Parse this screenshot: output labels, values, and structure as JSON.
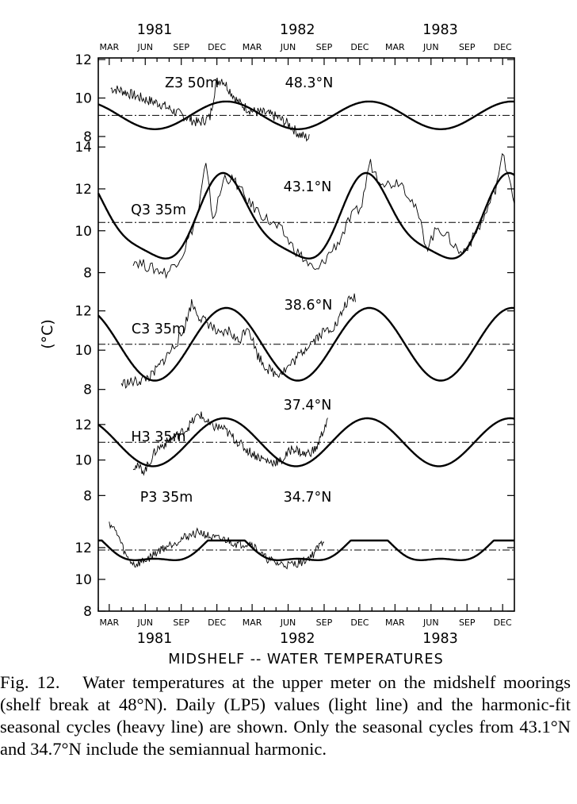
{
  "chart_data": {
    "type": "line",
    "title": "MIDSHELF -- WATER TEMPERATURES",
    "ylabel": "(°C)",
    "xlim": [
      "1981-02-01",
      "1983-12-31"
    ],
    "month_labels": [
      "MAR",
      "JUN",
      "SEP",
      "DEC"
    ],
    "month_ticks": [
      {
        "label": "MAR",
        "date": "1981-03-01"
      },
      {
        "label": "JUN",
        "date": "1981-06-01"
      },
      {
        "label": "SEP",
        "date": "1981-09-01"
      },
      {
        "label": "DEC",
        "date": "1981-12-01"
      },
      {
        "label": "MAR",
        "date": "1982-03-01"
      },
      {
        "label": "JUN",
        "date": "1982-06-01"
      },
      {
        "label": "SEP",
        "date": "1982-09-01"
      },
      {
        "label": "DEC",
        "date": "1982-12-01"
      },
      {
        "label": "MAR",
        "date": "1983-03-01"
      },
      {
        "label": "JUN",
        "date": "1983-06-01"
      },
      {
        "label": "SEP",
        "date": "1983-09-01"
      },
      {
        "label": "DEC",
        "date": "1983-12-01"
      }
    ],
    "year_labels": [
      {
        "label": "1981",
        "date": "1981-07-15"
      },
      {
        "label": "1982",
        "date": "1982-07-15"
      },
      {
        "label": "1983",
        "date": "1983-07-15"
      }
    ],
    "panels": [
      {
        "name": "Z3 50m",
        "latitude": "48.3°N",
        "yticks": [
          8,
          10,
          12
        ],
        "ylim": [
          8,
          12
        ],
        "mean": 9.1,
        "harmonic": {
          "mean": 9.1,
          "amp1": 0.72,
          "peak": "1981-12-25",
          "amp2": 0,
          "phase2": 0,
          "flat_top": null,
          "flat_bottom": null
        },
        "daily": {
          "start": "1981-03-05",
          "end": "1982-07-25",
          "points": [
            [
              0,
              10.5
            ],
            [
              0.05,
              10.4
            ],
            [
              0.1,
              10.2
            ],
            [
              0.18,
              9.9
            ],
            [
              0.25,
              9.7
            ],
            [
              0.32,
              9.3
            ],
            [
              0.38,
              9.0
            ],
            [
              0.44,
              8.7
            ],
            [
              0.5,
              9.0
            ],
            [
              0.53,
              10.8
            ],
            [
              0.56,
              11.0
            ],
            [
              0.6,
              10.4
            ],
            [
              0.64,
              9.8
            ],
            [
              0.68,
              9.5
            ],
            [
              0.72,
              9.3
            ],
            [
              0.78,
              9.2
            ],
            [
              0.84,
              9.0
            ],
            [
              0.9,
              8.6
            ],
            [
              0.95,
              8.1
            ],
            [
              1.0,
              7.9
            ]
          ]
        }
      },
      {
        "name": "Q3 35m",
        "latitude": "43.1°N",
        "yticks": [
          8,
          10,
          12,
          14
        ],
        "ylim": [
          7.3,
          14.5
        ],
        "mean": 10.4,
        "harmonic": {
          "mean": 10.4,
          "amp1": 1.95,
          "peak": "1981-12-25",
          "amp2": 0.45,
          "phase2": 0.6,
          "flat_top": null,
          "flat_bottom": null
        },
        "daily": {
          "start": "1981-05-01",
          "end": "1983-12-31",
          "points": [
            [
              0,
              8.6
            ],
            [
              0.05,
              8.2
            ],
            [
              0.09,
              8.0
            ],
            [
              0.13,
              8.9
            ],
            [
              0.17,
              10.8
            ],
            [
              0.19,
              13.2
            ],
            [
              0.21,
              10.5
            ],
            [
              0.24,
              12.6
            ],
            [
              0.27,
              12.3
            ],
            [
              0.3,
              11.4
            ],
            [
              0.33,
              10.9
            ],
            [
              0.36,
              10.4
            ],
            [
              0.39,
              10.0
            ],
            [
              0.42,
              9.2
            ],
            [
              0.45,
              8.6
            ],
            [
              0.48,
              8.0
            ],
            [
              0.51,
              8.8
            ],
            [
              0.54,
              9.5
            ],
            [
              0.57,
              10.6
            ],
            [
              0.6,
              11.2
            ],
            [
              0.62,
              13.3
            ],
            [
              0.64,
              12.6
            ],
            [
              0.67,
              12.2
            ],
            [
              0.7,
              12.4
            ],
            [
              0.73,
              11.5
            ],
            [
              0.75,
              10.6
            ],
            [
              0.77,
              9.2
            ],
            [
              0.8,
              10.2
            ],
            [
              0.83,
              9.6
            ],
            [
              0.86,
              8.9
            ],
            [
              0.89,
              9.6
            ],
            [
              0.92,
              10.6
            ],
            [
              0.95,
              12.0
            ],
            [
              0.97,
              13.6
            ],
            [
              0.99,
              12.4
            ],
            [
              1.0,
              11.3
            ]
          ]
        }
      },
      {
        "name": "C3 35m",
        "latitude": "38.6°N",
        "yticks": [
          8,
          10,
          12
        ],
        "ylim": [
          7.3,
          13.2
        ],
        "mean": 10.3,
        "harmonic": {
          "mean": 10.3,
          "amp1": 1.85,
          "peak": "1981-12-25",
          "amp2": 0,
          "phase2": 0,
          "flat_top": null,
          "flat_bottom": null
        },
        "daily": {
          "start": "1981-04-01",
          "end": "1982-11-20",
          "points": [
            [
              0,
              8.3
            ],
            [
              0.07,
              8.4
            ],
            [
              0.13,
              8.7
            ],
            [
              0.2,
              9.8
            ],
            [
              0.26,
              10.8
            ],
            [
              0.3,
              12.4
            ],
            [
              0.34,
              11.6
            ],
            [
              0.38,
              11.3
            ],
            [
              0.42,
              10.7
            ],
            [
              0.46,
              11.0
            ],
            [
              0.5,
              10.4
            ],
            [
              0.54,
              11.3
            ],
            [
              0.58,
              9.8
            ],
            [
              0.62,
              9.1
            ],
            [
              0.66,
              8.8
            ],
            [
              0.7,
              9.0
            ],
            [
              0.75,
              9.6
            ],
            [
              0.8,
              10.3
            ],
            [
              0.86,
              10.9
            ],
            [
              0.92,
              11.3
            ],
            [
              0.96,
              12.4
            ],
            [
              1.0,
              12.7
            ]
          ]
        }
      },
      {
        "name": "H3 35m",
        "latitude": "37.4°N",
        "yticks": [
          8,
          10,
          12
        ],
        "ylim": [
          7.3,
          13.2
        ],
        "mean": 11.0,
        "harmonic": {
          "mean": 11.0,
          "amp1": 1.35,
          "peak": "1981-12-20",
          "amp2": 0,
          "phase2": 0,
          "flat_top": null,
          "flat_bottom": null
        },
        "daily": {
          "start": "1981-05-01",
          "end": "1982-09-10",
          "points": [
            [
              0,
              9.7
            ],
            [
              0.06,
              9.4
            ],
            [
              0.12,
              10.6
            ],
            [
              0.2,
              11.2
            ],
            [
              0.27,
              11.7
            ],
            [
              0.34,
              12.6
            ],
            [
              0.4,
              11.9
            ],
            [
              0.46,
              11.8
            ],
            [
              0.52,
              11.2
            ],
            [
              0.58,
              10.6
            ],
            [
              0.64,
              10.2
            ],
            [
              0.7,
              9.9
            ],
            [
              0.76,
              9.9
            ],
            [
              0.82,
              10.7
            ],
            [
              0.88,
              10.3
            ],
            [
              0.94,
              10.6
            ],
            [
              1.0,
              12.3
            ]
          ]
        }
      },
      {
        "name": "P3 35m",
        "latitude": "34.7°N",
        "yticks": [
          8,
          10,
          12
        ],
        "ylim": [
          8,
          14.5
        ],
        "mean": 11.85,
        "harmonic": {
          "mean": 11.85,
          "amp1": 0.9,
          "peak": "1981-12-25",
          "amp2": 0.35,
          "phase2": 0.0,
          "flat_top": 12.45,
          "flat_bottom": null
        },
        "daily": {
          "start": "1981-03-01",
          "end": "1982-09-01",
          "points": [
            [
              0,
              13.6
            ],
            [
              0.04,
              12.8
            ],
            [
              0.08,
              11.4
            ],
            [
              0.12,
              10.9
            ],
            [
              0.18,
              11.3
            ],
            [
              0.24,
              11.9
            ],
            [
              0.3,
              12.3
            ],
            [
              0.36,
              12.7
            ],
            [
              0.42,
              13.0
            ],
            [
              0.48,
              12.6
            ],
            [
              0.54,
              12.5
            ],
            [
              0.6,
              12.2
            ],
            [
              0.66,
              12.3
            ],
            [
              0.72,
              11.4
            ],
            [
              0.78,
              11.0
            ],
            [
              0.84,
              10.9
            ],
            [
              0.9,
              11.1
            ],
            [
              0.95,
              11.6
            ],
            [
              1.0,
              12.5
            ]
          ]
        }
      }
    ],
    "series": [
      {
        "name": "Daily (LP5) values (light line)"
      },
      {
        "name": "harmonic-fit seasonal cycles (heavy line)"
      }
    ]
  },
  "caption": {
    "label": "Fig. 12.",
    "text": "Water temperatures at the upper meter on the midshelf moorings (shelf break at 48°N). Daily (LP5) values (light line) and the harmonic-fit seasonal cycles (heavy line) are shown. Only the seasonal cycles from 43.1°N and 34.7°N include the semiannual harmonic."
  }
}
